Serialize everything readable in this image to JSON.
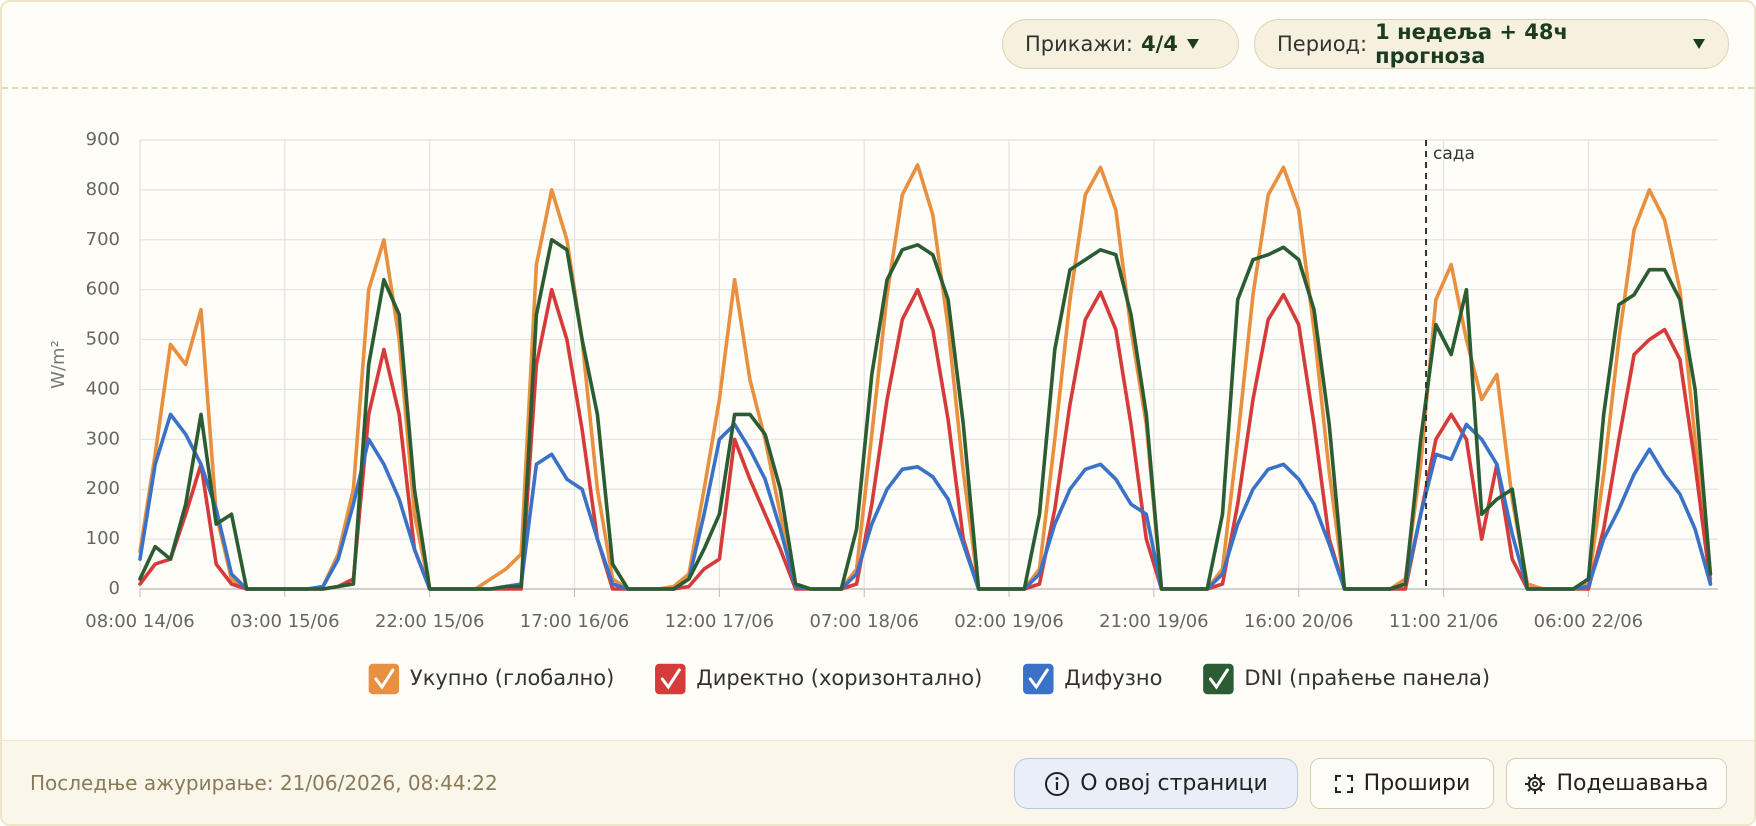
{
  "controls": {
    "show_label": "Прикажи:",
    "show_value": "4/4",
    "period_label": "Период:",
    "period_value": "1 недеља + 48ч прогноза"
  },
  "chart_data": {
    "type": "line",
    "y_label": "W/m²",
    "x": [
      0,
      2,
      4,
      6,
      8,
      10,
      12,
      14,
      16,
      18,
      20,
      22,
      24,
      26,
      28,
      30,
      32,
      34,
      36,
      38,
      40,
      42,
      44,
      46,
      48,
      50,
      52,
      54,
      56,
      58,
      60,
      62,
      64,
      66,
      68,
      70,
      72,
      74,
      76,
      78,
      80,
      82,
      84,
      86,
      88,
      90,
      92,
      94,
      96,
      98,
      100,
      102,
      104,
      106,
      108,
      110,
      112,
      114,
      116,
      118,
      120,
      122,
      124,
      126,
      128,
      130,
      132,
      134,
      136,
      138,
      140,
      142,
      144,
      146,
      148,
      150,
      152,
      154,
      156,
      158,
      160,
      162,
      164,
      166,
      168,
      170,
      172,
      174,
      176,
      178,
      180,
      182,
      184,
      186,
      188,
      190,
      192,
      194,
      196,
      198,
      200,
      202,
      204,
      206
    ],
    "xlim": [
      0,
      207
    ],
    "xticks": [
      {
        "value": 0,
        "label": "08:00 14/06"
      },
      {
        "value": 19,
        "label": "03:00 15/06"
      },
      {
        "value": 38,
        "label": "22:00 15/06"
      },
      {
        "value": 57,
        "label": "17:00 16/06"
      },
      {
        "value": 76,
        "label": "12:00 17/06"
      },
      {
        "value": 95,
        "label": "07:00 18/06"
      },
      {
        "value": 114,
        "label": "02:00 19/06"
      },
      {
        "value": 133,
        "label": "21:00 19/06"
      },
      {
        "value": 152,
        "label": "16:00 20/06"
      },
      {
        "value": 171,
        "label": "11:00 21/06"
      },
      {
        "value": 190,
        "label": "06:00 22/06"
      }
    ],
    "ylim": [
      0,
      900
    ],
    "yticks": [
      0,
      100,
      200,
      300,
      400,
      500,
      600,
      700,
      800,
      900
    ],
    "grid": true,
    "now_marker": {
      "x": 168.7,
      "label": "сада"
    },
    "series": [
      {
        "name": "Укупно (глобално)",
        "color": "#e8903f",
        "values": [
          75,
          270,
          490,
          450,
          560,
          150,
          20,
          0,
          0,
          0,
          0,
          0,
          5,
          70,
          200,
          600,
          700,
          500,
          150,
          0,
          0,
          0,
          0,
          20,
          40,
          70,
          650,
          800,
          700,
          500,
          200,
          20,
          0,
          0,
          0,
          5,
          30,
          200,
          380,
          620,
          420,
          300,
          150,
          5,
          0,
          0,
          0,
          40,
          310,
          590,
          790,
          850,
          750,
          525,
          235,
          0,
          0,
          0,
          0,
          40,
          300,
          580,
          790,
          845,
          760,
          520,
          330,
          0,
          0,
          0,
          0,
          40,
          300,
          590,
          790,
          845,
          760,
          520,
          235,
          0,
          0,
          0,
          0,
          20,
          250,
          580,
          650,
          500,
          380,
          430,
          180,
          10,
          0,
          0,
          0,
          10,
          230,
          500,
          720,
          800,
          740,
          600,
          300,
          20
        ]
      },
      {
        "name": "Директно (хоризонтално)",
        "color": "#d63b3b",
        "values": [
          10,
          50,
          60,
          150,
          250,
          50,
          10,
          0,
          0,
          0,
          0,
          0,
          0,
          5,
          20,
          350,
          480,
          350,
          80,
          0,
          0,
          0,
          0,
          0,
          0,
          0,
          450,
          600,
          500,
          320,
          100,
          0,
          0,
          0,
          0,
          0,
          5,
          40,
          60,
          300,
          220,
          150,
          80,
          0,
          0,
          0,
          0,
          10,
          170,
          380,
          540,
          600,
          520,
          340,
          100,
          0,
          0,
          0,
          0,
          10,
          160,
          370,
          540,
          595,
          520,
          330,
          100,
          0,
          0,
          0,
          0,
          10,
          170,
          380,
          540,
          590,
          530,
          330,
          100,
          0,
          0,
          0,
          0,
          0,
          150,
          300,
          350,
          300,
          100,
          250,
          60,
          0,
          0,
          0,
          0,
          0,
          120,
          300,
          470,
          500,
          520,
          460,
          250,
          10
        ]
      },
      {
        "name": "Дифузно",
        "color": "#3a72c8",
        "values": [
          60,
          250,
          350,
          310,
          250,
          160,
          30,
          0,
          0,
          0,
          0,
          0,
          5,
          60,
          170,
          300,
          250,
          180,
          80,
          0,
          0,
          0,
          0,
          0,
          5,
          10,
          250,
          270,
          220,
          200,
          100,
          10,
          0,
          0,
          0,
          0,
          20,
          150,
          300,
          330,
          280,
          220,
          120,
          5,
          0,
          0,
          0,
          30,
          130,
          200,
          240,
          245,
          225,
          180,
          90,
          0,
          0,
          0,
          0,
          30,
          130,
          200,
          240,
          250,
          220,
          170,
          150,
          0,
          0,
          0,
          0,
          30,
          130,
          200,
          240,
          250,
          220,
          170,
          90,
          0,
          0,
          0,
          0,
          10,
          150,
          270,
          260,
          330,
          300,
          250,
          110,
          0,
          0,
          0,
          0,
          5,
          100,
          160,
          230,
          280,
          230,
          190,
          120,
          10
        ]
      },
      {
        "name": "DNI (праћење панела)",
        "color": "#2b5c32",
        "values": [
          20,
          85,
          60,
          170,
          350,
          130,
          150,
          0,
          0,
          0,
          0,
          0,
          0,
          5,
          10,
          450,
          620,
          550,
          200,
          0,
          0,
          0,
          0,
          0,
          5,
          5,
          550,
          700,
          680,
          500,
          350,
          50,
          0,
          0,
          0,
          0,
          20,
          80,
          150,
          350,
          350,
          310,
          200,
          10,
          0,
          0,
          0,
          120,
          430,
          620,
          680,
          690,
          670,
          580,
          330,
          0,
          0,
          0,
          0,
          150,
          480,
          640,
          660,
          680,
          670,
          550,
          350,
          0,
          0,
          0,
          0,
          150,
          580,
          660,
          670,
          685,
          660,
          560,
          330,
          0,
          0,
          0,
          0,
          10,
          300,
          530,
          470,
          600,
          150,
          180,
          200,
          0,
          0,
          0,
          0,
          20,
          350,
          570,
          590,
          640,
          640,
          580,
          400,
          30
        ]
      }
    ]
  },
  "footer": {
    "updated": "Последње ажурирање: 21/06/2026, 08:44:22",
    "about": "О овој страници",
    "expand": "Прошири",
    "settings": "Подешавања"
  }
}
